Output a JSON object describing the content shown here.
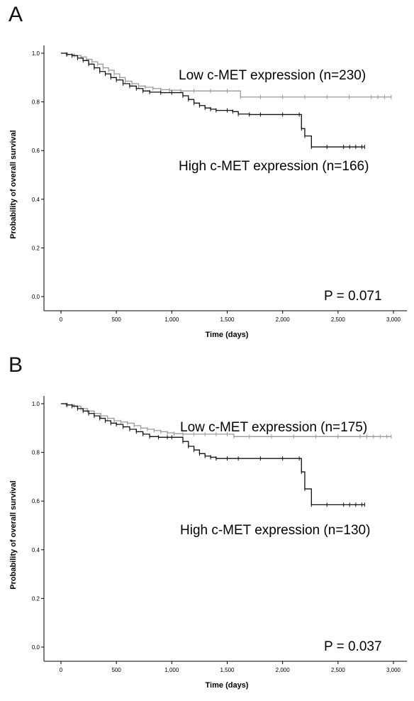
{
  "chart_data": [
    {
      "type": "line",
      "panel_label": "A",
      "xlabel": "Time (days)",
      "ylabel": "Probability of overall survival",
      "xlim": [
        0,
        3000
      ],
      "ylim": [
        0.0,
        1.0
      ],
      "x_ticks": [
        0,
        500,
        1000,
        1500,
        2000,
        2500,
        3000
      ],
      "x_tick_labels": [
        "0",
        "500",
        "1,000",
        "1,500",
        "2,000",
        "2,500",
        "3,000"
      ],
      "y_ticks": [
        0.0,
        0.2,
        0.4,
        0.6,
        0.8,
        1.0
      ],
      "y_tick_labels": [
        "0.0",
        "0.2",
        "0.4",
        "0.6",
        "0.8",
        "1.0"
      ],
      "annotation": "P = 0.071",
      "series": [
        {
          "name": "Low c-MET expression (n=230)",
          "color": "#9a9a9a",
          "x": [
            0,
            60,
            120,
            180,
            230,
            280,
            330,
            380,
            430,
            480,
            530,
            580,
            640,
            700,
            760,
            830,
            900,
            980,
            1080,
            1200,
            1350,
            1500,
            1620,
            1800,
            2000,
            2200,
            2400,
            2600,
            2800,
            2980
          ],
          "y": [
            1.0,
            0.995,
            0.99,
            0.985,
            0.975,
            0.965,
            0.955,
            0.94,
            0.93,
            0.915,
            0.9,
            0.885,
            0.875,
            0.865,
            0.86,
            0.855,
            0.85,
            0.848,
            0.845,
            0.845,
            0.845,
            0.845,
            0.82,
            0.82,
            0.82,
            0.82,
            0.82,
            0.82,
            0.82,
            0.82
          ]
        },
        {
          "name": "High c-MET expression (n=166)",
          "color": "#111111",
          "x": [
            0,
            50,
            100,
            150,
            200,
            250,
            300,
            350,
            400,
            450,
            500,
            560,
            620,
            680,
            740,
            800,
            900,
            1000,
            1100,
            1150,
            1200,
            1250,
            1300,
            1350,
            1400,
            1500,
            1550,
            1600,
            1700,
            1800,
            2000,
            2150,
            2170,
            2200,
            2260,
            2400,
            2550,
            2740
          ],
          "y": [
            1.0,
            0.995,
            0.99,
            0.98,
            0.97,
            0.955,
            0.94,
            0.925,
            0.915,
            0.9,
            0.89,
            0.875,
            0.865,
            0.855,
            0.845,
            0.84,
            0.838,
            0.838,
            0.825,
            0.81,
            0.795,
            0.785,
            0.775,
            0.77,
            0.765,
            0.765,
            0.76,
            0.75,
            0.748,
            0.748,
            0.748,
            0.748,
            0.69,
            0.66,
            0.615,
            0.615,
            0.615,
            0.615
          ]
        }
      ]
    },
    {
      "type": "line",
      "panel_label": "B",
      "xlabel": "Time (days)",
      "ylabel": "Probability of overall survival",
      "xlim": [
        0,
        3000
      ],
      "ylim": [
        0.0,
        1.0
      ],
      "x_ticks": [
        0,
        500,
        1000,
        1500,
        2000,
        2500,
        3000
      ],
      "x_tick_labels": [
        "0",
        "500",
        "1,000",
        "1,500",
        "2,000",
        "2,500",
        "3,000"
      ],
      "y_ticks": [
        0.0,
        0.2,
        0.4,
        0.6,
        0.8,
        1.0
      ],
      "y_tick_labels": [
        "0.0",
        "0.2",
        "0.4",
        "0.6",
        "0.8",
        "1.0"
      ],
      "annotation": "P = 0.037",
      "series": [
        {
          "name": "Low c-MET expression (n=175)",
          "color": "#9a9a9a",
          "x": [
            0,
            60,
            120,
            180,
            240,
            300,
            360,
            420,
            480,
            540,
            600,
            660,
            720,
            780,
            840,
            900,
            960,
            1020,
            1100,
            1200,
            1300,
            1400,
            1500,
            1560,
            1700,
            1900,
            2100,
            2300,
            2500,
            2700,
            2980
          ],
          "y": [
            1.0,
            0.995,
            0.99,
            0.98,
            0.97,
            0.96,
            0.95,
            0.94,
            0.93,
            0.925,
            0.92,
            0.91,
            0.9,
            0.895,
            0.89,
            0.885,
            0.88,
            0.877,
            0.875,
            0.875,
            0.875,
            0.875,
            0.875,
            0.865,
            0.865,
            0.865,
            0.865,
            0.865,
            0.865,
            0.865,
            0.865
          ]
        },
        {
          "name": "High c-MET expression (n=130)",
          "color": "#111111",
          "x": [
            0,
            50,
            100,
            150,
            200,
            250,
            300,
            350,
            400,
            450,
            500,
            560,
            620,
            680,
            740,
            800,
            880,
            960,
            1000,
            1100,
            1150,
            1200,
            1250,
            1300,
            1350,
            1400,
            1500,
            1600,
            1800,
            2000,
            2150,
            2170,
            2200,
            2260,
            2400,
            2550,
            2740
          ],
          "y": [
            1.0,
            0.995,
            0.99,
            0.98,
            0.97,
            0.96,
            0.95,
            0.94,
            0.93,
            0.92,
            0.915,
            0.905,
            0.895,
            0.885,
            0.875,
            0.865,
            0.862,
            0.862,
            0.862,
            0.845,
            0.825,
            0.81,
            0.795,
            0.785,
            0.78,
            0.775,
            0.775,
            0.775,
            0.775,
            0.775,
            0.775,
            0.72,
            0.65,
            0.585,
            0.585,
            0.585,
            0.585
          ]
        }
      ]
    }
  ]
}
